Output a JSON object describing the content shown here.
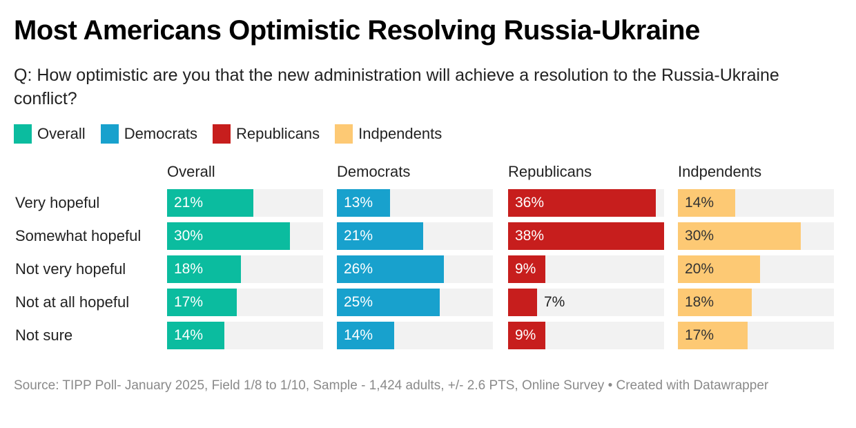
{
  "title": "Most Americans Optimistic Resolving Russia-Ukraine",
  "subtitle": "Q: How optimistic are you that the new administration will achieve a resolution to the Russia-Ukraine conflict?",
  "legend": [
    {
      "label": "Overall",
      "color": "#0bbc9f"
    },
    {
      "label": "Democrats",
      "color": "#18a1cd"
    },
    {
      "label": "Republicans",
      "color": "#c71e1d"
    },
    {
      "label": "Indpendents",
      "color": "#fdc974"
    }
  ],
  "footer": "Source: TIPP Poll- January 2025, Field 1/8 to 1/10, Sample - 1,424 adults, +/- 2.6 PTS, Online Survey • Created with Datawrapper",
  "chart_data": {
    "type": "bar",
    "orientation": "horizontal",
    "layout": "small-multiples",
    "title": "Most Americans Optimistic Resolving Russia-Ukraine",
    "subtitle": "Q: How optimistic are you that the new administration will achieve a resolution to the Russia-Ukraine conflict?",
    "categories": [
      "Very hopeful",
      "Somewhat hopeful",
      "Not very hopeful",
      "Not at all hopeful",
      "Not sure"
    ],
    "xlim": [
      0,
      38
    ],
    "unit": "%",
    "legend_position": "top-left",
    "series": [
      {
        "name": "Overall",
        "color": "#0bbc9f",
        "label_color": "#ffffff",
        "values": [
          21,
          30,
          18,
          17,
          14
        ]
      },
      {
        "name": "Democrats",
        "color": "#18a1cd",
        "label_color": "#ffffff",
        "values": [
          13,
          21,
          26,
          25,
          14
        ]
      },
      {
        "name": "Republicans",
        "color": "#c71e1d",
        "label_color": "#ffffff",
        "values": [
          36,
          38,
          9,
          7,
          9
        ]
      },
      {
        "name": "Indpendents",
        "color": "#fdc974",
        "label_color": "#333333",
        "values": [
          14,
          30,
          20,
          18,
          17
        ]
      }
    ],
    "source": "Source: TIPP Poll- January 2025, Field 1/8 to 1/10, Sample - 1,424 adults, +/- 2.6 PTS, Online Survey • Created with Datawrapper"
  }
}
